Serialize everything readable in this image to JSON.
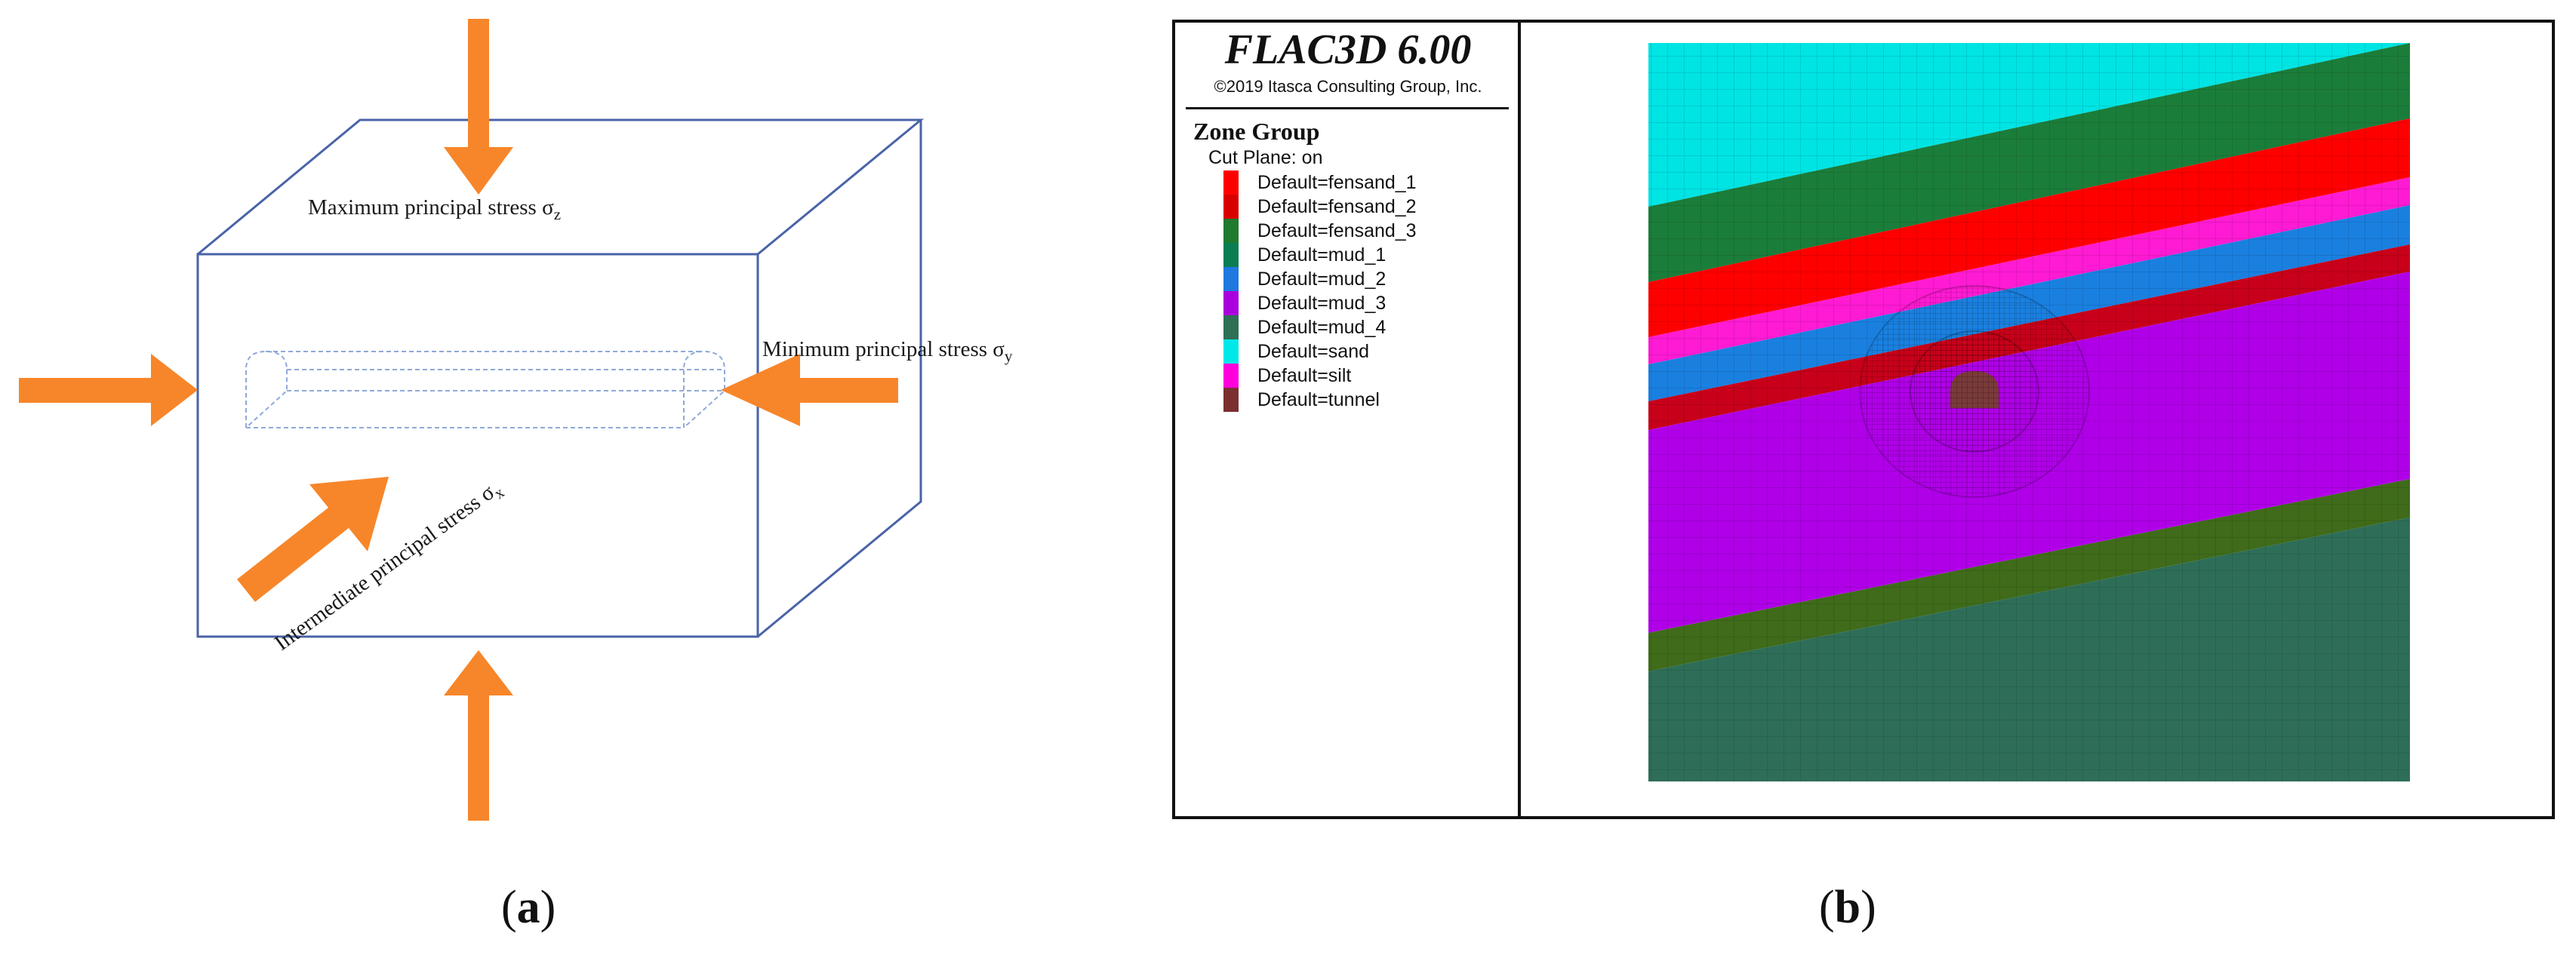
{
  "panel_a": {
    "caption_letter": "a",
    "labels": {
      "max_stress": "Maximum principal stress σ",
      "max_stress_sub": "z",
      "min_stress": "Minimum principal stress σ",
      "min_stress_sub": "y",
      "int_stress": "Intermediate principal stress σ",
      "int_stress_sub": "x"
    },
    "colors": {
      "arrow": "#f7862a",
      "box": "#4a63a8",
      "tunnel": "#8fa9d8"
    }
  },
  "panel_b": {
    "caption_letter": "b",
    "app_title": "FLAC3D 6.00",
    "copyright": "©2019 Itasca Consulting Group, Inc.",
    "legend_title": "Zone Group",
    "legend_subtitle": "Cut Plane: on",
    "legend_items": [
      {
        "label": "Default=fensand_1",
        "color": "#ff0000"
      },
      {
        "label": "Default=fensand_2",
        "color": "#d90000"
      },
      {
        "label": "Default=fensand_3",
        "color": "#1f7a2e"
      },
      {
        "label": "Default=mud_1",
        "color": "#0a7d52"
      },
      {
        "label": "Default=mud_2",
        "color": "#1e78e0"
      },
      {
        "label": "Default=mud_3",
        "color": "#aa00dd"
      },
      {
        "label": "Default=mud_4",
        "color": "#2f6f56"
      },
      {
        "label": "Default=sand",
        "color": "#00e8e8"
      },
      {
        "label": "Default=silt",
        "color": "#ff00dd"
      },
      {
        "label": "Default=tunnel",
        "color": "#7a3030"
      }
    ],
    "layer_colors": {
      "sand": "#00e4e4",
      "fensand_3": "#1b7d3a",
      "fensand_1": "#ff0000",
      "silt": "#ff1ad4",
      "mud_2": "#1a80e0",
      "fensand_2": "#c8001a",
      "mud_3": "#b000e8",
      "mud_4_band": "#3f6b1a",
      "mud_1": "#2e6e58",
      "tunnel": "#7a3a3a"
    }
  }
}
